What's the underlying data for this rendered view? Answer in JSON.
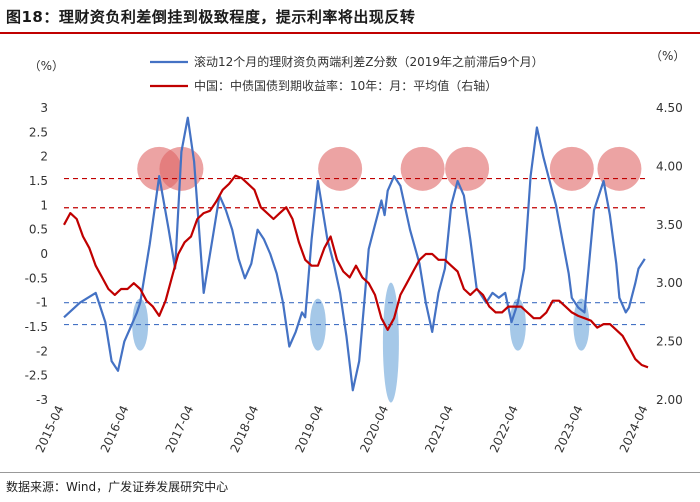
{
  "header": {
    "title": "图18：理财资负利差倒挂到极致程度，提示利率将出现反转"
  },
  "footer": {
    "source": "数据来源：Wind，广发证券发展研究中心"
  },
  "chart_data": {
    "type": "line",
    "left_unit": "（%）",
    "right_unit": "（%）",
    "x_tick_labels": [
      "2015-04",
      "2016-04",
      "2017-04",
      "2018-04",
      "2019-04",
      "2020-04",
      "2021-04",
      "2022-04",
      "2023-04",
      "2024-04"
    ],
    "left_ylim": [
      -3,
      3
    ],
    "left_ticks": [
      "3",
      "2.5",
      "2",
      "1.5",
      "1",
      "0.5",
      "0",
      "-0.5",
      "-1",
      "-1.5",
      "-2",
      "-2.5",
      "-3"
    ],
    "right_ylim": [
      2.0,
      4.5
    ],
    "right_ticks": [
      "4.50",
      "4.00",
      "3.50",
      "3.00",
      "2.50",
      "2.00"
    ],
    "colors": {
      "series1": "#4472c4",
      "series2": "#c00000",
      "circle": "#e06666",
      "ellipse": "#5b9bd5"
    },
    "series": [
      {
        "name": "滚动12个月的理财资负两端利差Z分数（2019年之前滞后9个月）",
        "axis": "left",
        "x": [
          2015.25,
          2015.5,
          2015.75,
          2015.9,
          2016.0,
          2016.1,
          2016.2,
          2016.3,
          2016.4,
          2016.45,
          2016.6,
          2016.75,
          2016.9,
          2017.0,
          2017.1,
          2017.2,
          2017.3,
          2017.4,
          2017.45,
          2017.5,
          2017.6,
          2017.7,
          2017.8,
          2017.9,
          2018.0,
          2018.1,
          2018.2,
          2018.3,
          2018.4,
          2018.5,
          2018.6,
          2018.7,
          2018.8,
          2018.9,
          2019.0,
          2019.05,
          2019.1,
          2019.15,
          2019.25,
          2019.3,
          2019.4,
          2019.5,
          2019.6,
          2019.7,
          2019.8,
          2019.9,
          2020.0,
          2020.05,
          2020.15,
          2020.25,
          2020.3,
          2020.35,
          2020.45,
          2020.55,
          2020.7,
          2020.85,
          2020.95,
          2021.05,
          2021.15,
          2021.25,
          2021.35,
          2021.45,
          2021.55,
          2021.65,
          2021.75,
          2021.85,
          2021.9,
          2022.0,
          2022.1,
          2022.2,
          2022.3,
          2022.4,
          2022.5,
          2022.6,
          2022.7,
          2022.8,
          2022.9,
          2023.0,
          2023.1,
          2023.2,
          2023.25,
          2023.35,
          2023.45,
          2023.6,
          2023.75,
          2023.85,
          2023.95,
          2024.0,
          2024.1,
          2024.15,
          2024.25,
          2024.3,
          2024.4
        ],
        "y": [
          -1.3,
          -1.0,
          -0.8,
          -1.4,
          -2.2,
          -2.4,
          -1.8,
          -1.5,
          -1.2,
          -1.0,
          0.2,
          1.6,
          0.5,
          -0.3,
          2.1,
          2.8,
          1.9,
          0.1,
          -0.8,
          -0.4,
          0.4,
          1.2,
          0.9,
          0.5,
          -0.1,
          -0.5,
          -0.2,
          0.5,
          0.3,
          0.0,
          -0.4,
          -1.0,
          -1.9,
          -1.6,
          -1.2,
          -1.3,
          -0.5,
          0.3,
          1.5,
          1.1,
          0.3,
          -0.2,
          -0.8,
          -1.7,
          -2.8,
          -2.2,
          -0.7,
          0.1,
          0.6,
          1.1,
          0.8,
          1.3,
          1.6,
          1.4,
          0.5,
          -0.2,
          -1.0,
          -1.6,
          -0.8,
          -0.3,
          1.0,
          1.5,
          1.2,
          0.3,
          -0.7,
          -0.9,
          -1.0,
          -0.8,
          -0.9,
          -0.8,
          -1.4,
          -1.0,
          -0.3,
          1.6,
          2.6,
          2.0,
          1.5,
          1.0,
          0.3,
          -0.4,
          -0.9,
          -1.1,
          -1.2,
          0.9,
          1.5,
          0.8,
          -0.2,
          -0.9,
          -1.2,
          -1.1,
          -0.6,
          -0.3,
          -0.1
        ],
        "color": "#4472c4"
      },
      {
        "name": "中国：中债国债到期收益率：10年：月：平均值（右轴）",
        "axis": "right",
        "x": [
          2015.25,
          2015.35,
          2015.45,
          2015.55,
          2015.65,
          2015.75,
          2015.85,
          2015.95,
          2016.05,
          2016.15,
          2016.25,
          2016.35,
          2016.45,
          2016.55,
          2016.65,
          2016.75,
          2016.85,
          2016.95,
          2017.05,
          2017.15,
          2017.25,
          2017.35,
          2017.45,
          2017.55,
          2017.65,
          2017.75,
          2017.85,
          2017.95,
          2018.05,
          2018.15,
          2018.25,
          2018.35,
          2018.45,
          2018.55,
          2018.65,
          2018.75,
          2018.85,
          2018.95,
          2019.05,
          2019.15,
          2019.25,
          2019.35,
          2019.45,
          2019.55,
          2019.65,
          2019.75,
          2019.85,
          2019.95,
          2020.05,
          2020.15,
          2020.25,
          2020.35,
          2020.45,
          2020.55,
          2020.65,
          2020.75,
          2020.85,
          2020.95,
          2021.05,
          2021.15,
          2021.25,
          2021.35,
          2021.45,
          2021.55,
          2021.65,
          2021.75,
          2021.85,
          2021.95,
          2022.05,
          2022.15,
          2022.25,
          2022.35,
          2022.45,
          2022.55,
          2022.65,
          2022.75,
          2022.85,
          2022.95,
          2023.05,
          2023.15,
          2023.25,
          2023.35,
          2023.45,
          2023.55,
          2023.65,
          2023.75,
          2023.85,
          2023.95,
          2024.05,
          2024.15,
          2024.25,
          2024.35,
          2024.45
        ],
        "y": [
          3.5,
          3.6,
          3.55,
          3.4,
          3.3,
          3.15,
          3.05,
          2.95,
          2.9,
          2.95,
          2.95,
          3.0,
          2.95,
          2.85,
          2.8,
          2.72,
          2.85,
          3.05,
          3.25,
          3.35,
          3.4,
          3.55,
          3.6,
          3.62,
          3.7,
          3.8,
          3.85,
          3.92,
          3.9,
          3.85,
          3.8,
          3.65,
          3.6,
          3.55,
          3.6,
          3.65,
          3.55,
          3.35,
          3.2,
          3.15,
          3.15,
          3.3,
          3.4,
          3.2,
          3.1,
          3.05,
          3.15,
          3.05,
          3.0,
          2.9,
          2.7,
          2.6,
          2.7,
          2.9,
          3.0,
          3.1,
          3.2,
          3.25,
          3.25,
          3.2,
          3.2,
          3.15,
          3.1,
          2.95,
          2.9,
          2.95,
          2.9,
          2.8,
          2.75,
          2.75,
          2.8,
          2.8,
          2.8,
          2.75,
          2.7,
          2.7,
          2.75,
          2.85,
          2.85,
          2.8,
          2.75,
          2.72,
          2.7,
          2.68,
          2.62,
          2.65,
          2.65,
          2.6,
          2.55,
          2.45,
          2.35,
          2.3,
          2.28
        ],
        "color": "#c00000"
      }
    ],
    "reference_lines": [
      {
        "axis": "left",
        "value": 1.55,
        "color": "#c00000"
      },
      {
        "axis": "left",
        "value": 0.95,
        "color": "#c00000"
      },
      {
        "axis": "left",
        "value": -1.0,
        "color": "#4472c4"
      },
      {
        "axis": "left",
        "value": -1.45,
        "color": "#4472c4"
      }
    ],
    "highlights_top": [
      2016.75,
      2017.1,
      2019.6,
      2020.9,
      2021.6,
      2023.25,
      2024.0
    ],
    "highlights_bottom": [
      2016.45,
      2019.25,
      2020.4,
      2022.4,
      2023.4
    ]
  }
}
